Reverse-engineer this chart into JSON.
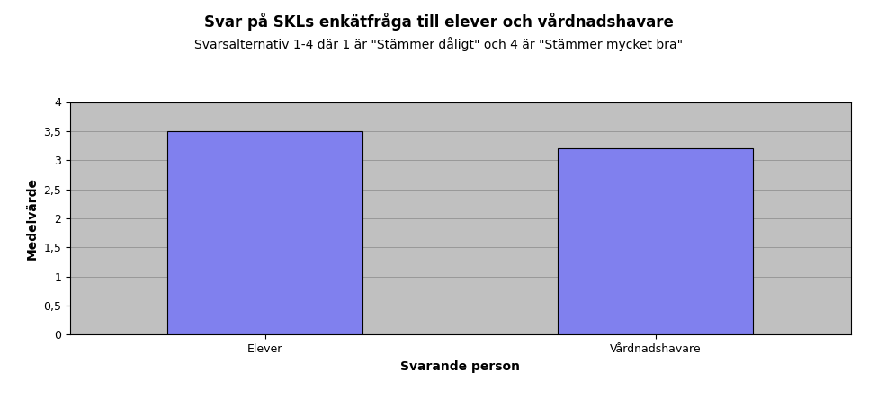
{
  "title_line1": "Svar på SKLs enkätfråga till elever och vårdnadshavare",
  "title_line2": "Svarsalternativ 1-4 där 1 är \"Stämmer dåligt\" och 4 är \"Stämmer mycket bra\"",
  "categories": [
    "Elever",
    "Vårdnadshavare"
  ],
  "values": [
    3.5,
    3.2
  ],
  "bar_color": "#8080EE",
  "bar_edge_color": "#000000",
  "xlabel": "Svarande person",
  "ylabel": "Medelvärde",
  "ylim": [
    0,
    4
  ],
  "yticks": [
    0,
    0.5,
    1,
    1.5,
    2,
    2.5,
    3,
    3.5,
    4
  ],
  "ytick_labels": [
    "0",
    "0,5",
    "1",
    "1,5",
    "2",
    "2,5",
    "3",
    "3,5",
    "4"
  ],
  "plot_bg_color": "#C0C0C0",
  "fig_bg_color": "#FFFFFF",
  "grid_color": "#888888",
  "title_fontsize": 12,
  "subtitle_fontsize": 10,
  "axis_label_fontsize": 10,
  "tick_fontsize": 9,
  "bar_positions": [
    1,
    3
  ],
  "xlim": [
    0,
    4
  ],
  "bar_width": 1.0
}
